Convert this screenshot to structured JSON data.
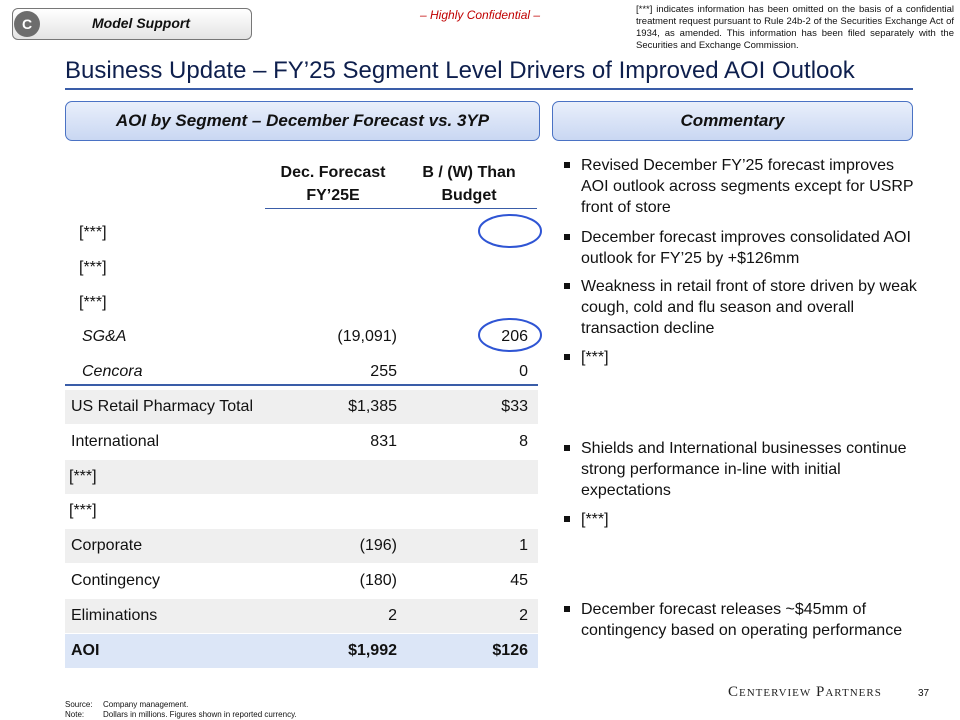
{
  "header": {
    "badge_letter": "C",
    "badge_text": "Model Support",
    "confidential": "– Highly Confidential –",
    "disclaimer": "[***] indicates information has been omitted on the basis of a confidential treatment request pursuant to Rule 24b-2 of the Securities Exchange Act of 1934, as amended. This information has been filed separately with the Securities and Exchange Commission."
  },
  "title": "Business Update – FY’25 Segment Level Drivers of Improved AOI Outlook",
  "left_panel": {
    "heading": "AOI by Segment – December Forecast vs. 3YP",
    "columns": [
      [
        "Dec. Forecast",
        "FY’25E"
      ],
      [
        "B / (W) Than",
        "Budget"
      ]
    ],
    "rows": [
      {
        "label": "[***]"
      },
      {
        "label": "[***]"
      },
      {
        "label": "[***]"
      },
      {
        "label": "SG&A",
        "forecast": "(19,091)",
        "variance": "206"
      },
      {
        "label": "Cencora",
        "forecast": "255",
        "variance": "0"
      },
      {
        "label": "US Retail Pharmacy Total",
        "forecast": "$1,385",
        "variance": "$33"
      },
      {
        "label": "International",
        "forecast": "831",
        "variance": "8"
      },
      {
        "label": "[***]"
      },
      {
        "label": "[***]"
      },
      {
        "label": "Corporate",
        "forecast": "(196)",
        "variance": "1"
      },
      {
        "label": "Contingency",
        "forecast": "(180)",
        "variance": "45"
      },
      {
        "label": "Eliminations",
        "forecast": "2",
        "variance": "2"
      },
      {
        "label": "AOI",
        "forecast": "$1,992",
        "variance": "$126"
      }
    ]
  },
  "right_panel": {
    "heading": "Commentary",
    "bullets": [
      "Revised December FY’25 forecast improves AOI outlook across segments except for USRP front of store",
      "December forecast improves consolidated AOI outlook for FY’25 by +$126mm",
      "Weakness in retail front of store driven by weak cough, cold and flu season and overall transaction decline",
      "[***]",
      "Shields and International businesses continue strong performance in-line with initial expectations",
      "[***]",
      "December forecast releases ~$45mm of contingency based on operating performance"
    ]
  },
  "footer": {
    "source_label": "Source:",
    "source": "Company management.",
    "note_label": "Note:",
    "note": "Dollars in millions. Figures shown in reported currency.",
    "logo": "Centerview Partners",
    "page_number": "37"
  }
}
